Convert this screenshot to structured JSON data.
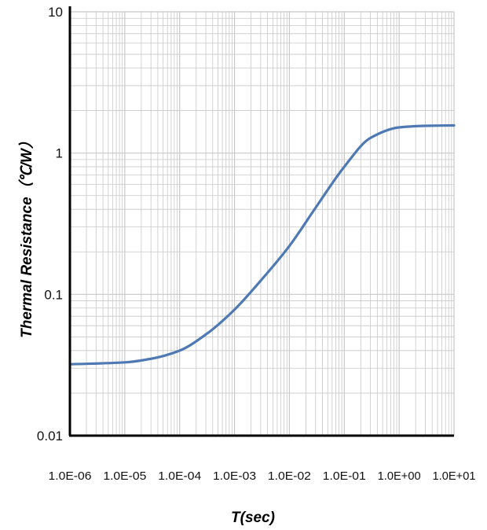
{
  "chart_data": {
    "type": "line",
    "title": "",
    "xlabel": "T(sec)",
    "ylabel": "Thermal Resistance（℃/W）",
    "x_scale": "log",
    "y_scale": "log",
    "xlim": [
      1e-06,
      10
    ],
    "ylim": [
      0.01,
      10
    ],
    "grid": true,
    "legend": "none",
    "x_tick_labels": [
      "1.0E-06",
      "1.0E-05",
      "1.0E-04",
      "1.0E-03",
      "1.0E-02",
      "1.0E-01",
      "1.0E+00",
      "1.0E+01"
    ],
    "y_tick_labels": [
      "0.01",
      "0.1",
      "1",
      "10"
    ],
    "series": [
      {
        "color": "#4f79b3",
        "x": [
          1e-06,
          1e-05,
          3e-05,
          0.0001,
          0.0003,
          0.001,
          0.003,
          0.01,
          0.03,
          0.1,
          0.3,
          1,
          3,
          10
        ],
        "y": [
          0.032,
          0.033,
          0.035,
          0.04,
          0.052,
          0.078,
          0.125,
          0.22,
          0.41,
          0.8,
          1.28,
          1.52,
          1.56,
          1.57
        ]
      }
    ]
  },
  "colors": {
    "grid": "#c8c8c8",
    "axis": "#000000",
    "line": "#4f79b3"
  }
}
